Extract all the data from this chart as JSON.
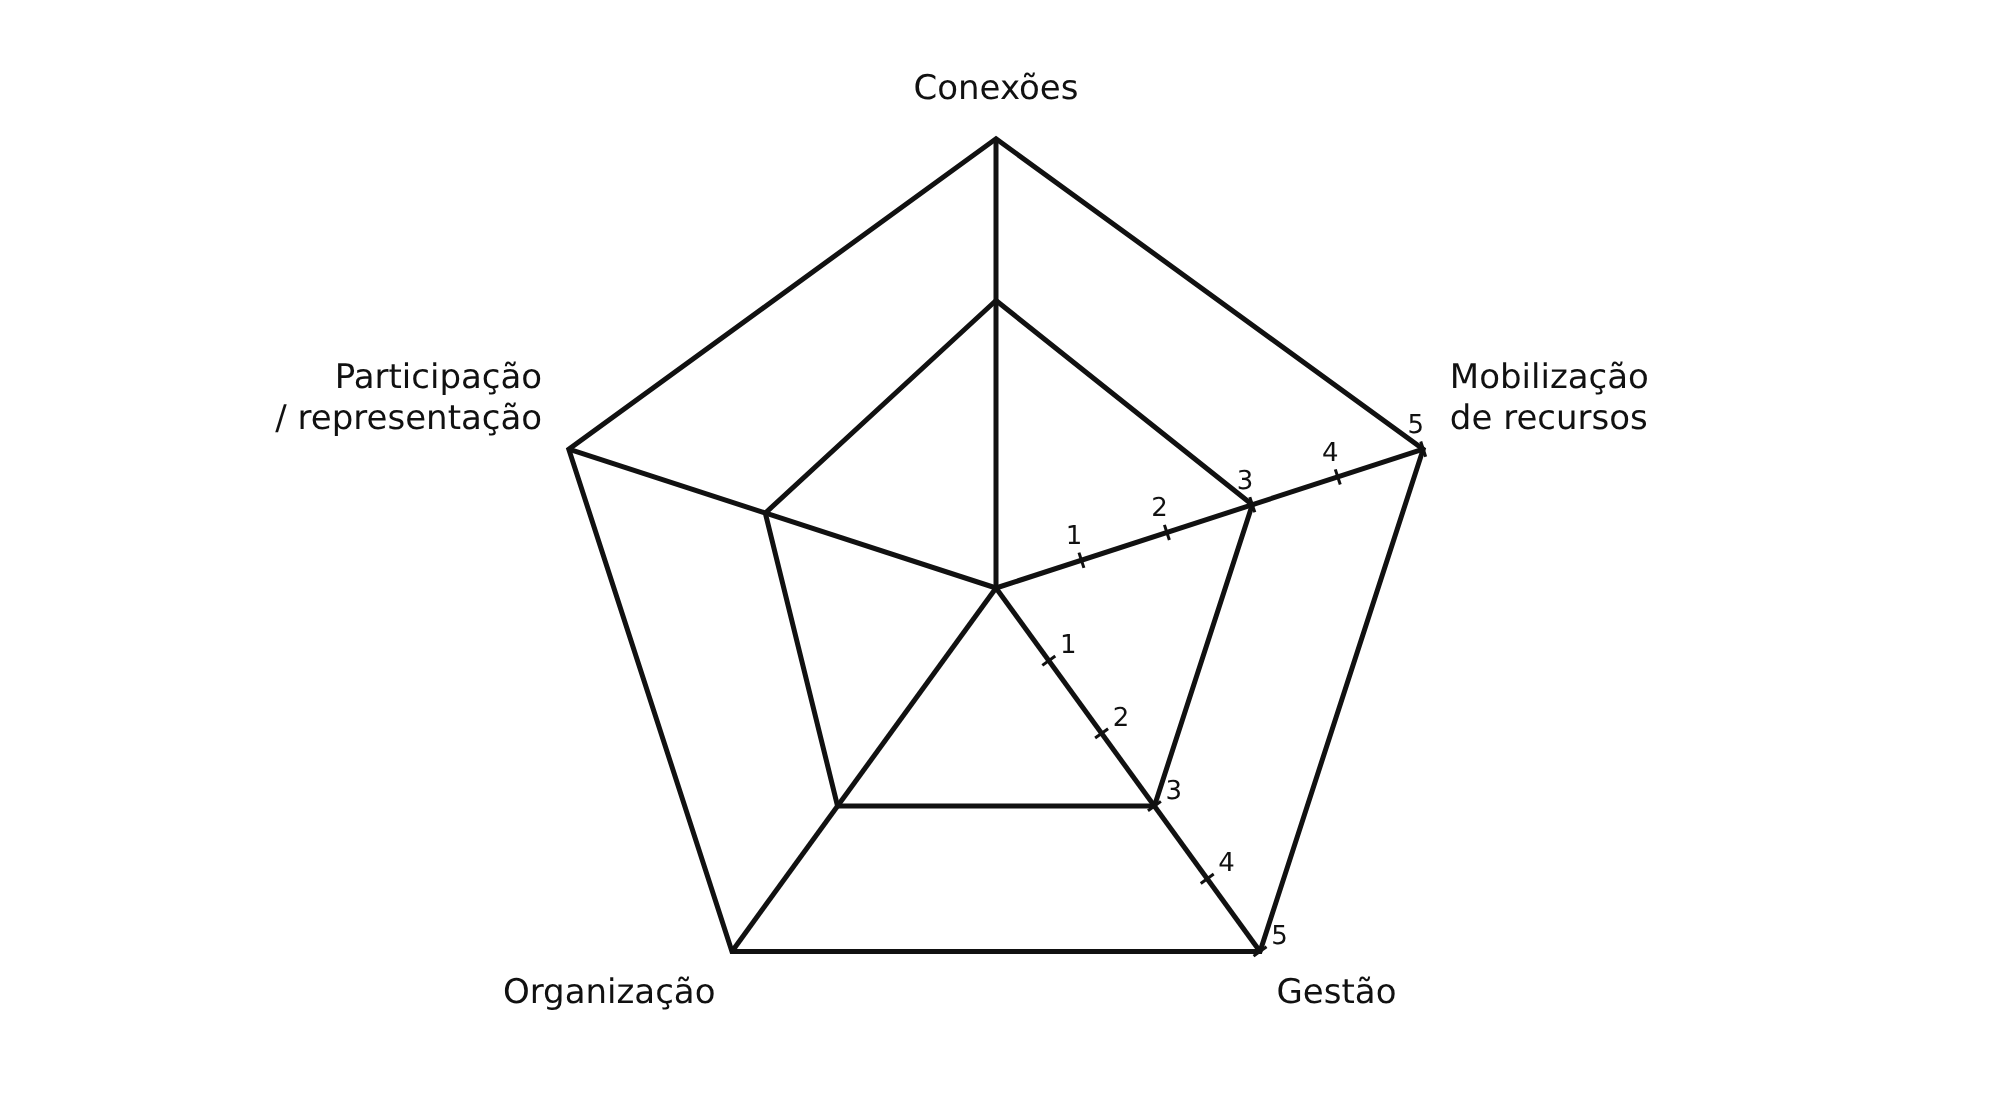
{
  "chart_data": {
    "type": "radar",
    "categories": [
      "Conexões",
      "Mobilização\nde recursos",
      "Gestão",
      "Organização",
      "Participação\n/ representação"
    ],
    "series": [
      {
        "color": "#111111",
        "values": [
          3.2,
          3,
          3,
          3,
          2.7
        ]
      }
    ],
    "ylim": [
      0,
      5
    ],
    "yticks": [
      1,
      2,
      3,
      4,
      5
    ],
    "annotations": [
      "1",
      "2",
      "3",
      "4",
      "5"
    ],
    "grid": false,
    "legend": false,
    "marker": "none"
  }
}
